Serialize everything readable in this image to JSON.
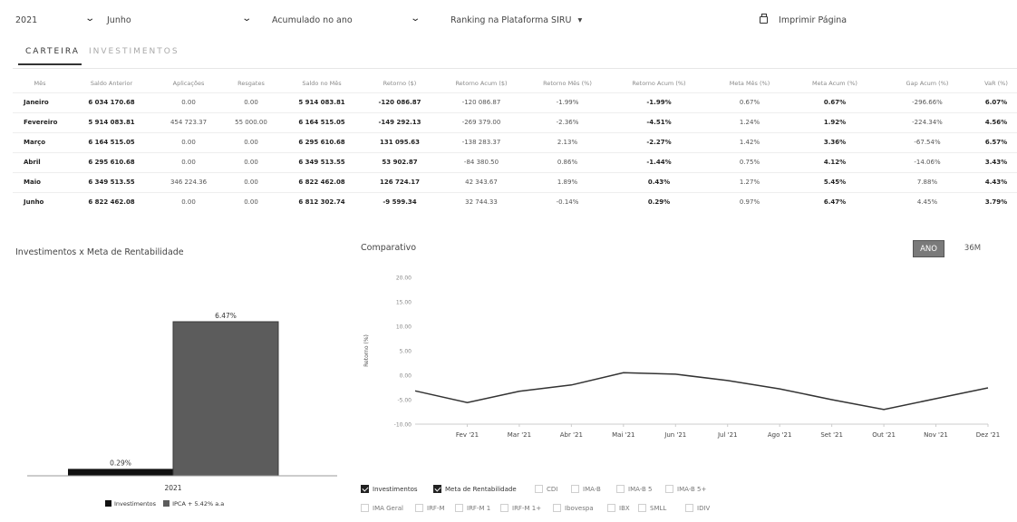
{
  "filters": {
    "year": "2021",
    "month": "Junho",
    "mode": "Acumulado no ano",
    "ranking": "Ranking na Plataforma SIRU",
    "ranking_caret": "▾",
    "print": "Imprimir Página"
  },
  "tabs": {
    "carteira": "CARTEIRA",
    "investimentos": "INVESTIMENTOS"
  },
  "table": {
    "headers": [
      "Mês",
      "Saldo Anterior",
      "Aplicações",
      "Resgates",
      "Saldo no Mês",
      "Retorno ($)",
      "Retorno Acum ($)",
      "Retorno Mês (%)",
      "Retorno Acum (%)",
      "Meta Mês (%)",
      "Meta Acum (%)",
      "Gap Acum (%)",
      "VaR (%)"
    ],
    "rows": [
      [
        "Janeiro",
        "6 034 170.68",
        "0.00",
        "0.00",
        "5 914 083.81",
        "-120 086.87",
        "-120 086.87",
        "-1.99%",
        "-1.99%",
        "0.67%",
        "0.67%",
        "-296.66%",
        "6.07%"
      ],
      [
        "Fevereiro",
        "5 914 083.81",
        "454 723.37",
        "55 000.00",
        "6 164 515.05",
        "-149 292.13",
        "-269 379.00",
        "-2.36%",
        "-4.51%",
        "1.24%",
        "1.92%",
        "-224.34%",
        "4.56%"
      ],
      [
        "Março",
        "6 164 515.05",
        "0.00",
        "0.00",
        "6 295 610.68",
        "131 095.63",
        "-138 283.37",
        "2.13%",
        "-2.27%",
        "1.42%",
        "3.36%",
        "-67.54%",
        "6.57%"
      ],
      [
        "Abril",
        "6 295 610.68",
        "0.00",
        "0.00",
        "6 349 513.55",
        "53 902.87",
        "-84 380.50",
        "0.86%",
        "-1.44%",
        "0.75%",
        "4.12%",
        "-14.06%",
        "3.43%"
      ],
      [
        "Maio",
        "6 349 513.55",
        "346 224.36",
        "0.00",
        "6 822 462.08",
        "126 724.17",
        "42 343.67",
        "1.89%",
        "0.43%",
        "1.27%",
        "5.45%",
        "7.88%",
        "4.43%"
      ],
      [
        "Junho",
        "6 822 462.08",
        "0.00",
        "0.00",
        "6 812 302.74",
        "-9 599.34",
        "32 744.33",
        "-0.14%",
        "0.29%",
        "0.97%",
        "6.47%",
        "4.45%",
        "3.79%"
      ]
    ]
  },
  "bar_chart_title": "Investimentos x Meta de Rentabilidade",
  "line_chart_title": "Comparativo",
  "period_buttons": {
    "active": "ANO",
    "inactive": "36M"
  },
  "colors": {
    "investimentos": "#111111",
    "meta": "#5c5c5c",
    "line": "#333333",
    "button_active": "#7a7a7a"
  },
  "chart_data": [
    {
      "type": "bar",
      "title": "Investimentos x Meta de Rentabilidade",
      "categories": [
        "2021"
      ],
      "series": [
        {
          "name": "Investimentos",
          "values": [
            0.29
          ],
          "label": "0.29%"
        },
        {
          "name": "IPCA + 5.42% a.a",
          "values": [
            6.47
          ],
          "label": "6.47%"
        }
      ],
      "legend_position": "bottom"
    },
    {
      "type": "line",
      "title": "Comparativo",
      "ylabel": "Retorno (%)",
      "ylim": [
        -10,
        20
      ],
      "yticks": [
        "20.00",
        "15.00",
        "10.00",
        "5.00",
        "0.00",
        "-5.00",
        "-10.00"
      ],
      "x": [
        "Fev '21",
        "Mar '21",
        "Abr '21",
        "Mai '21",
        "Jun '21",
        "Jul '21",
        "Ago '21",
        "Set '21",
        "Out '21",
        "Nov '21",
        "Dez '21"
      ],
      "points": [
        {
          "x": "Jan '21",
          "y": -3.2
        },
        {
          "x": "Fev '21",
          "y": -5.6
        },
        {
          "x": "Mar '21",
          "y": -3.3
        },
        {
          "x": "Abr '21",
          "y": -2.0
        },
        {
          "x": "Mai '21",
          "y": 0.5
        },
        {
          "x": "Jun '21",
          "y": 0.2
        },
        {
          "x": "Jul '21",
          "y": -1.1
        },
        {
          "x": "Ago '21",
          "y": -2.8
        },
        {
          "x": "Set '21",
          "y": -5.0
        },
        {
          "x": "Out '21",
          "y": -7.0
        },
        {
          "x": "Nov '21",
          "y": -4.8
        },
        {
          "x": "Dez '21",
          "y": -2.6
        }
      ],
      "grid": false
    }
  ],
  "checkboxes": [
    {
      "label": "Investimentos",
      "checked": true
    },
    {
      "label": "Meta de Rentabilidade",
      "checked": true
    },
    {
      "label": "CDI",
      "checked": false
    },
    {
      "label": "IMA-B",
      "checked": false
    },
    {
      "label": "IMA-B 5",
      "checked": false
    },
    {
      "label": "IMA-B 5+",
      "checked": false
    },
    {
      "label": "IMA Geral",
      "checked": false
    },
    {
      "label": "IRF-M",
      "checked": false
    },
    {
      "label": "IRF-M 1",
      "checked": false
    },
    {
      "label": "IRF-M 1+",
      "checked": false
    },
    {
      "label": "Ibovespa",
      "checked": false
    },
    {
      "label": "IBX",
      "checked": false
    },
    {
      "label": "SMLL",
      "checked": false
    },
    {
      "label": "IDIV",
      "checked": false
    }
  ]
}
